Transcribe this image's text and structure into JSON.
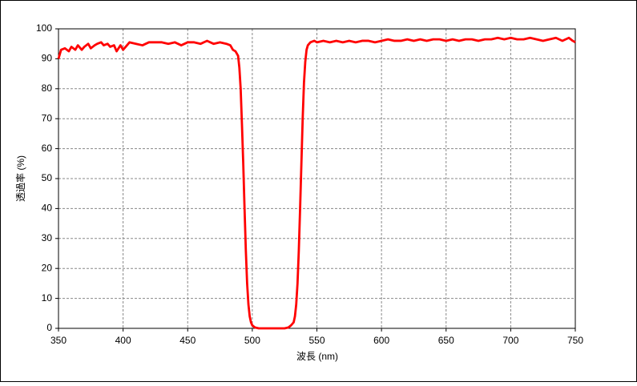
{
  "chart_data": {
    "type": "line",
    "x_label": "波長 (nm)",
    "y_label": "透過率 (%)",
    "xlim": [
      350,
      750
    ],
    "xticks": [
      350,
      400,
      450,
      500,
      550,
      600,
      650,
      700,
      750
    ],
    "ylim": [
      0,
      100
    ],
    "yticks": [
      0,
      10,
      20,
      30,
      40,
      50,
      60,
      70,
      80,
      90,
      100
    ],
    "grid": true,
    "series": [
      {
        "color": "#ff0000",
        "x": [
          350,
          352,
          355,
          358,
          360,
          363,
          365,
          368,
          370,
          373,
          375,
          378,
          380,
          383,
          385,
          388,
          390,
          393,
          395,
          398,
          400,
          403,
          405,
          410,
          415,
          420,
          425,
          430,
          435,
          440,
          445,
          450,
          455,
          460,
          465,
          470,
          475,
          480,
          483,
          485,
          487,
          489,
          490,
          491,
          492,
          493,
          494,
          495,
          496,
          497,
          498,
          499,
          500,
          502,
          505,
          510,
          515,
          520,
          525,
          528,
          530,
          532,
          533,
          534,
          535,
          536,
          537,
          538,
          539,
          540,
          541,
          542,
          543,
          545,
          548,
          550,
          555,
          560,
          565,
          570,
          575,
          580,
          585,
          590,
          595,
          600,
          605,
          610,
          615,
          620,
          625,
          630,
          635,
          640,
          645,
          650,
          655,
          660,
          665,
          670,
          675,
          680,
          685,
          690,
          695,
          700,
          705,
          710,
          715,
          720,
          725,
          730,
          735,
          740,
          745,
          748,
          750
        ],
        "values": [
          90,
          93,
          93.5,
          92.5,
          94,
          93,
          94.5,
          93,
          94,
          95,
          93.5,
          94.5,
          95,
          95.5,
          94.5,
          95,
          94,
          94.5,
          92.5,
          94.5,
          93,
          94.5,
          95.5,
          95,
          94.5,
          95.5,
          95.5,
          95.5,
          95,
          95.5,
          94.5,
          95.5,
          95.5,
          95,
          96,
          95,
          95.5,
          95,
          94.5,
          93,
          92.5,
          91,
          87,
          80,
          68,
          55,
          40,
          26,
          15,
          8,
          4,
          2,
          1,
          0.3,
          0,
          0,
          0,
          0,
          0,
          0.3,
          1,
          2,
          4,
          8,
          15,
          26,
          40,
          55,
          70,
          82,
          89,
          93,
          94.5,
          95.5,
          96,
          95.5,
          96,
          95.5,
          96,
          95.5,
          96,
          95.5,
          96,
          96,
          95.5,
          96,
          96.5,
          96,
          96,
          96.5,
          96,
          96.5,
          96,
          96.5,
          96.5,
          96,
          96.5,
          96,
          96.5,
          96.5,
          96,
          96.5,
          96.5,
          97,
          96.5,
          97,
          96.5,
          96.5,
          97,
          96.5,
          96,
          96.5,
          97,
          96,
          97,
          96,
          95.5
        ]
      }
    ]
  }
}
